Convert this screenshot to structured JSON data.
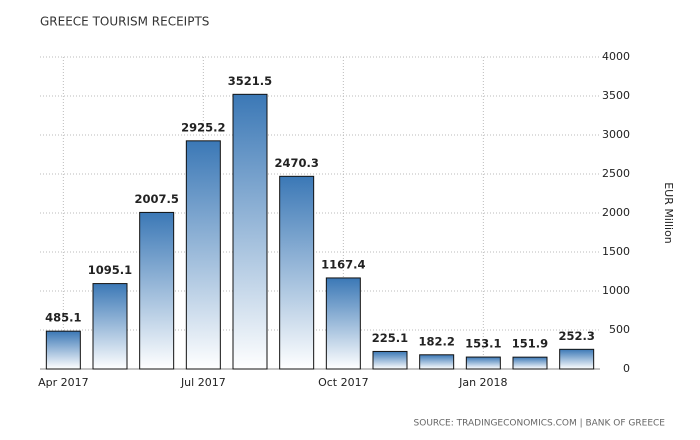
{
  "chart_data": {
    "type": "bar",
    "title": "GREECE TOURISM RECEIPTS",
    "categories": [
      "Apr 2017",
      null,
      null,
      "Jul 2017",
      null,
      null,
      "Oct 2017",
      null,
      null,
      "Jan 2018",
      null,
      null
    ],
    "values": [
      485.1,
      1095.1,
      2007.5,
      2925.2,
      3521.5,
      2470.3,
      1167.4,
      225.1,
      182.2,
      153.1,
      151.9,
      252.3
    ],
    "color": "#3b78b6",
    "ylim": [
      0,
      4000
    ],
    "yticks": [
      0,
      500,
      1000,
      1500,
      2000,
      2500,
      3000,
      3500,
      4000
    ],
    "y_label": "EUR Million",
    "grid": true,
    "source": "SOURCE: TRADINGECONOMICS.COM | BANK OF GREECE"
  }
}
